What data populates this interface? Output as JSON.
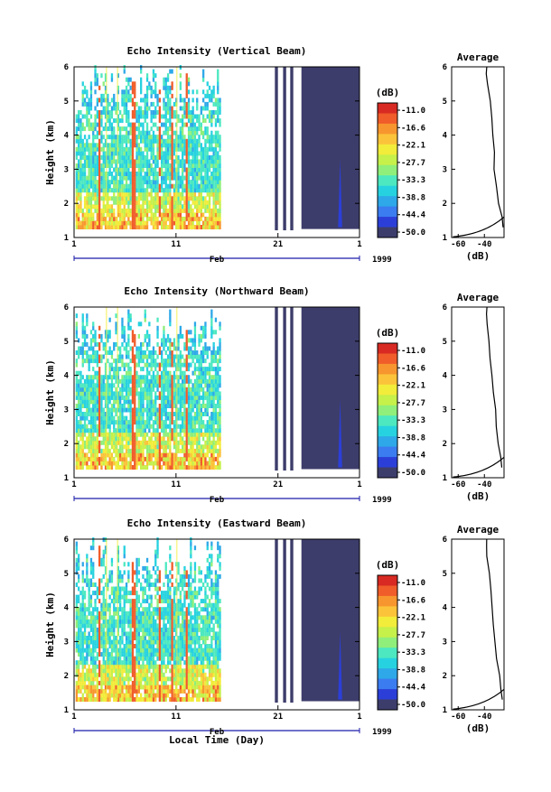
{
  "chart_data": [
    {
      "type": "heatmap",
      "title": "Echo Intensity (Vertical Beam)",
      "ylabel": "Height (km)",
      "yticks": [
        "1",
        "2",
        "3",
        "4",
        "5",
        "6"
      ],
      "xticks": [
        "1",
        "11",
        "21",
        "1"
      ],
      "month_label": "Feb",
      "year_label": "1999",
      "colorbar": {
        "unit": "(dB)",
        "ticks": [
          "-11.0",
          "-16.6",
          "-22.1",
          "-27.7",
          "-33.3",
          "-38.8",
          "-44.4",
          "-50.0"
        ]
      },
      "average": {
        "title": "Average",
        "xlabel": "(dB)",
        "xticks": [
          "-60",
          "-40"
        ],
        "yticks": [
          "1",
          "2",
          "3",
          "4",
          "5",
          "6"
        ]
      }
    },
    {
      "type": "heatmap",
      "title": "Echo Intensity (Northward Beam)",
      "ylabel": "Height (km)",
      "yticks": [
        "1",
        "2",
        "3",
        "4",
        "5",
        "6"
      ],
      "xticks": [
        "1",
        "11",
        "21",
        "1"
      ],
      "month_label": "Feb",
      "year_label": "1999",
      "colorbar": {
        "unit": "(dB)",
        "ticks": [
          "-11.0",
          "-16.6",
          "-22.1",
          "-27.7",
          "-33.3",
          "-38.8",
          "-44.4",
          "-50.0"
        ]
      },
      "average": {
        "title": "Average",
        "xlabel": "(dB)",
        "xticks": [
          "-60",
          "-40"
        ],
        "yticks": [
          "1",
          "2",
          "3",
          "4",
          "5",
          "6"
        ]
      }
    },
    {
      "type": "heatmap",
      "title": "Echo Intensity (Eastward Beam)",
      "ylabel": "Height (km)",
      "yticks": [
        "1",
        "2",
        "3",
        "4",
        "5",
        "6"
      ],
      "xticks": [
        "1",
        "11",
        "21",
        "1"
      ],
      "month_label": "Feb",
      "year_label": "1999",
      "colorbar": {
        "unit": "(dB)",
        "ticks": [
          "-11.0",
          "-16.6",
          "-22.1",
          "-27.7",
          "-33.3",
          "-38.8",
          "-44.4",
          "-50.0"
        ]
      },
      "average": {
        "title": "Average",
        "xlabel": "(dB)",
        "xticks": [
          "-60",
          "-40"
        ],
        "yticks": [
          "1",
          "2",
          "3",
          "4",
          "5",
          "6"
        ]
      }
    }
  ],
  "xlabel": "Local Time (Day)",
  "colors": {
    "colorscale": [
      "#3d3d6b",
      "#2b3fd8",
      "#3b7cf0",
      "#2ea8e8",
      "#27d2e0",
      "#4de8c0",
      "#8fef7a",
      "#c6f04a",
      "#f2ec3a",
      "#fbc33a",
      "#f7962e",
      "#f05c2a",
      "#d82a22"
    ],
    "axis": "#000000",
    "date_axis": "#1a1aaa"
  }
}
